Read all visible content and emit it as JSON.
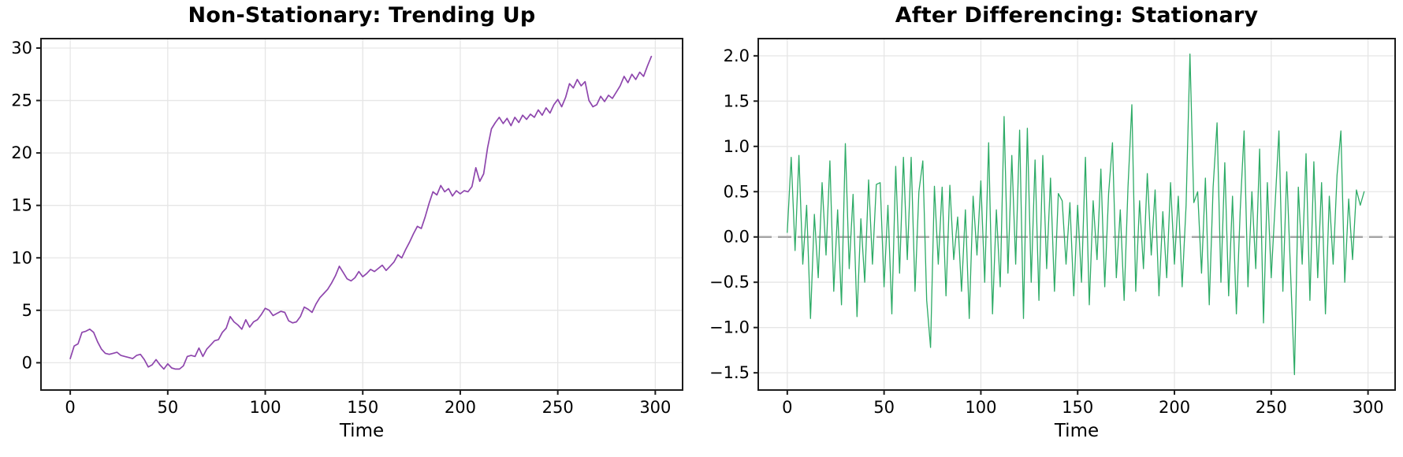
{
  "figure": {
    "background": "#ffffff",
    "text_color": "#000000",
    "spine_color": "#1c1c1c",
    "grid_color": "#e6e6e6"
  },
  "chart_data": [
    {
      "type": "line",
      "title": "Non-Stationary: Trending Up",
      "xlabel": "Time",
      "line_color": "#8e46ad",
      "grid": true,
      "legend": "none",
      "x_start": 0,
      "x_step": 2,
      "xlim": [
        -15,
        314
      ],
      "ylim": [
        -2.6,
        30.9
      ],
      "xticks": {
        "values": [
          0,
          50,
          100,
          150,
          200,
          250,
          300
        ],
        "labels": [
          "0",
          "50",
          "100",
          "150",
          "200",
          "250",
          "300"
        ]
      },
      "yticks": {
        "values": [
          0,
          5,
          10,
          15,
          20,
          25,
          30
        ],
        "labels": [
          "0",
          "5",
          "10",
          "15",
          "20",
          "25",
          "30"
        ]
      },
      "values": [
        0.4,
        1.6,
        1.8,
        2.9,
        3.0,
        3.2,
        2.9,
        2.0,
        1.3,
        0.9,
        0.8,
        0.9,
        1.0,
        0.7,
        0.6,
        0.5,
        0.4,
        0.7,
        0.8,
        0.3,
        -0.4,
        -0.2,
        0.3,
        -0.2,
        -0.6,
        -0.1,
        -0.5,
        -0.6,
        -0.6,
        -0.3,
        0.6,
        0.7,
        0.6,
        1.4,
        0.6,
        1.3,
        1.7,
        2.1,
        2.2,
        2.9,
        3.3,
        4.4,
        3.9,
        3.6,
        3.2,
        4.1,
        3.4,
        3.9,
        4.1,
        4.6,
        5.2,
        5.0,
        4.5,
        4.7,
        4.9,
        4.8,
        4.0,
        3.8,
        3.9,
        4.4,
        5.3,
        5.1,
        4.8,
        5.6,
        6.2,
        6.6,
        7.0,
        7.6,
        8.3,
        9.2,
        8.6,
        8.0,
        7.8,
        8.1,
        8.7,
        8.2,
        8.5,
        8.9,
        8.7,
        9.0,
        9.3,
        8.8,
        9.2,
        9.6,
        10.3,
        10.0,
        10.8,
        11.5,
        12.3,
        13.0,
        12.8,
        13.9,
        15.2,
        16.3,
        16.0,
        16.9,
        16.3,
        16.6,
        15.9,
        16.4,
        16.1,
        16.4,
        16.3,
        16.8,
        18.6,
        17.3,
        18.0,
        20.5,
        22.3,
        22.9,
        23.4,
        22.8,
        23.3,
        22.6,
        23.4,
        22.9,
        23.6,
        23.2,
        23.7,
        23.4,
        24.1,
        23.6,
        24.3,
        23.8,
        24.6,
        25.1,
        24.4,
        25.3,
        26.6,
        26.2,
        27.0,
        26.4,
        26.8,
        25.0,
        24.4,
        24.6,
        25.4,
        24.9,
        25.5,
        25.2,
        25.8,
        26.4,
        27.3,
        26.7,
        27.5,
        27.0,
        27.7,
        27.3,
        28.3,
        29.2
      ]
    },
    {
      "type": "line",
      "title": "After Differencing: Stationary",
      "xlabel": "Time",
      "line_color": "#2dab66",
      "grid": true,
      "legend": "none",
      "zero_line": {
        "y": 0,
        "style": "dashed",
        "color": "#a6a6a6"
      },
      "x_start": 0,
      "x_step": 2,
      "xlim": [
        -15,
        314
      ],
      "ylim": [
        -1.69,
        2.19
      ],
      "xticks": {
        "values": [
          0,
          50,
          100,
          150,
          200,
          250,
          300
        ],
        "labels": [
          "0",
          "50",
          "100",
          "150",
          "200",
          "250",
          "300"
        ]
      },
      "yticks": {
        "values": [
          2.0,
          1.5,
          1.0,
          0.5,
          0.0,
          -0.5,
          -1.0,
          -1.5
        ],
        "labels": [
          "2.0",
          "1.5",
          "1.0",
          "0.5",
          "0.0",
          "−0.5",
          "−1.0",
          "−1.5"
        ]
      },
      "values": [
        0.05,
        0.88,
        -0.15,
        0.9,
        -0.3,
        0.35,
        -0.9,
        0.25,
        -0.45,
        0.6,
        -0.2,
        0.84,
        -0.6,
        0.3,
        -0.75,
        1.03,
        -0.35,
        0.47,
        -0.88,
        0.2,
        -0.5,
        0.63,
        -0.3,
        0.58,
        0.6,
        -0.55,
        0.35,
        -0.85,
        0.78,
        -0.4,
        0.88,
        -0.25,
        0.88,
        -0.6,
        0.5,
        0.84,
        -0.7,
        -1.22,
        0.56,
        -0.3,
        0.55,
        -0.65,
        0.57,
        -0.25,
        0.22,
        -0.6,
        0.3,
        -0.9,
        0.45,
        -0.2,
        0.62,
        -0.5,
        1.04,
        -0.85,
        0.3,
        -0.55,
        1.33,
        -0.4,
        0.9,
        -0.3,
        1.18,
        -0.9,
        1.2,
        -0.5,
        0.85,
        -0.7,
        0.9,
        -0.35,
        0.65,
        -0.6,
        0.48,
        0.4,
        -0.3,
        0.38,
        -0.65,
        0.35,
        -0.5,
        0.88,
        -0.75,
        0.4,
        -0.25,
        0.75,
        -0.55,
        0.48,
        1.04,
        -0.45,
        0.3,
        -0.7,
        0.55,
        1.46,
        -0.6,
        0.4,
        -0.35,
        0.7,
        -0.2,
        0.52,
        -0.65,
        0.28,
        -0.45,
        0.6,
        -0.3,
        0.45,
        -0.55,
        0.35,
        2.02,
        0.38,
        0.5,
        -0.4,
        0.65,
        -0.75,
        0.55,
        1.26,
        -0.5,
        0.82,
        -0.65,
        0.45,
        -0.85,
        0.3,
        1.17,
        -0.55,
        0.5,
        -0.35,
        0.97,
        -0.95,
        0.6,
        -0.45,
        0.35,
        1.17,
        -0.6,
        0.72,
        -0.4,
        -1.52,
        0.55,
        -0.3,
        0.92,
        -0.7,
        0.83,
        -0.45,
        0.6,
        -0.85,
        0.45,
        -0.3,
        0.68,
        1.17,
        -0.5,
        0.42,
        -0.25,
        0.52,
        0.35,
        0.5
      ]
    }
  ]
}
